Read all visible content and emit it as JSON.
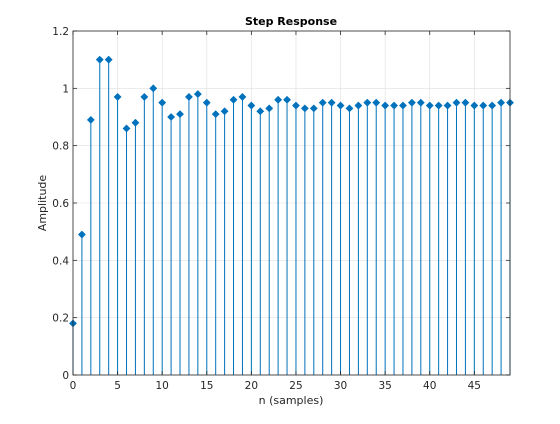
{
  "chart_data": {
    "type": "stem",
    "title": "Step Response",
    "xlabel": "n (samples)",
    "ylabel": "Amplitude",
    "xlim": [
      0,
      49
    ],
    "ylim": [
      0,
      1.2
    ],
    "xticks": [
      0,
      5,
      10,
      15,
      20,
      25,
      30,
      35,
      40,
      45
    ],
    "yticks": [
      0,
      0.2,
      0.4,
      0.6,
      0.8,
      1,
      1.2
    ],
    "xtick_labels": [
      "0",
      "5",
      "10",
      "15",
      "20",
      "25",
      "30",
      "35",
      "40",
      "45"
    ],
    "ytick_labels": [
      "0",
      "0.2",
      "0.4",
      "0.6",
      "0.8",
      "1",
      "1.2"
    ],
    "grid": true,
    "marker": "filled-diamond",
    "color": "#0072BD",
    "x": [
      0,
      1,
      2,
      3,
      4,
      5,
      6,
      7,
      8,
      9,
      10,
      11,
      12,
      13,
      14,
      15,
      16,
      17,
      18,
      19,
      20,
      21,
      22,
      23,
      24,
      25,
      26,
      27,
      28,
      29,
      30,
      31,
      32,
      33,
      34,
      35,
      36,
      37,
      38,
      39,
      40,
      41,
      42,
      43,
      44,
      45,
      46,
      47,
      48,
      49
    ],
    "values": [
      0.18,
      0.49,
      0.89,
      1.1,
      1.1,
      0.97,
      0.86,
      0.88,
      0.97,
      1.0,
      0.95,
      0.9,
      0.91,
      0.97,
      0.98,
      0.95,
      0.91,
      0.92,
      0.96,
      0.97,
      0.94,
      0.92,
      0.93,
      0.96,
      0.96,
      0.94,
      0.93,
      0.93,
      0.95,
      0.95,
      0.94,
      0.93,
      0.94,
      0.95,
      0.95,
      0.94,
      0.94,
      0.94,
      0.95,
      0.95,
      0.94,
      0.94,
      0.94,
      0.95,
      0.95,
      0.94,
      0.94,
      0.94,
      0.95,
      0.95
    ]
  }
}
